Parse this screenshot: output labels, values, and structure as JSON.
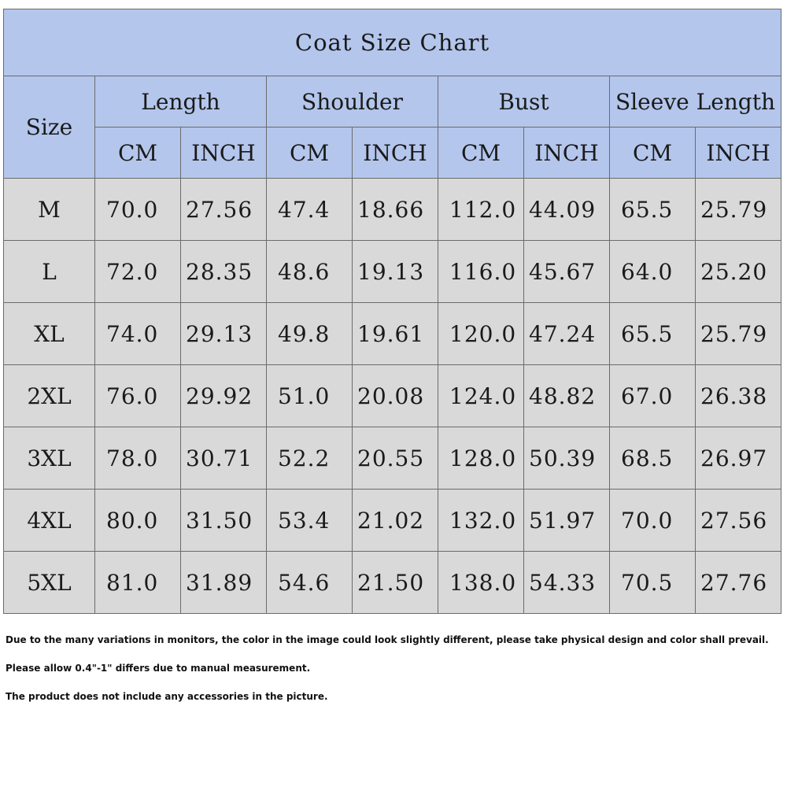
{
  "title": "Coat Size Chart",
  "size_header": "Size",
  "groups": [
    "Length",
    "Shoulder",
    "Bust",
    "Sleeve Length"
  ],
  "units": [
    "CM",
    "INCH",
    "CM",
    "INCH",
    "CM",
    "INCH",
    "CM",
    "INCH"
  ],
  "rows": [
    {
      "size": "M",
      "values": [
        "70.0",
        "27.56",
        "47.4",
        "18.66",
        "112.0",
        "44.09",
        "65.5",
        "25.79"
      ]
    },
    {
      "size": "L",
      "values": [
        "72.0",
        "28.35",
        "48.6",
        "19.13",
        "116.0",
        "45.67",
        "64.0",
        "25.20"
      ]
    },
    {
      "size": "XL",
      "values": [
        "74.0",
        "29.13",
        "49.8",
        "19.61",
        "120.0",
        "47.24",
        "65.5",
        "25.79"
      ]
    },
    {
      "size": "2XL",
      "values": [
        "76.0",
        "29.92",
        "51.0",
        "20.08",
        "124.0",
        "48.82",
        "67.0",
        "26.38"
      ]
    },
    {
      "size": "3XL",
      "values": [
        "78.0",
        "30.71",
        "52.2",
        "20.55",
        "128.0",
        "50.39",
        "68.5",
        "26.97"
      ]
    },
    {
      "size": "4XL",
      "values": [
        "80.0",
        "31.50",
        "53.4",
        "21.02",
        "132.0",
        "51.97",
        "70.0",
        "27.56"
      ]
    },
    {
      "size": "5XL",
      "values": [
        "81.0",
        "31.89",
        "54.6",
        "21.50",
        "138.0",
        "54.33",
        "70.5",
        "27.76"
      ]
    }
  ],
  "notes": [
    "Due to the many variations in monitors, the color in the image could look slightly different, please take physical design and color shall prevail.",
    "Please allow 0.4\"-1\" differs due to manual measurement.",
    "The product does not include any accessories in the picture."
  ],
  "colors": {
    "header_bg": "#b4c6ec",
    "row_bg": "#d9d9d9",
    "border": "#6b6b6b"
  }
}
